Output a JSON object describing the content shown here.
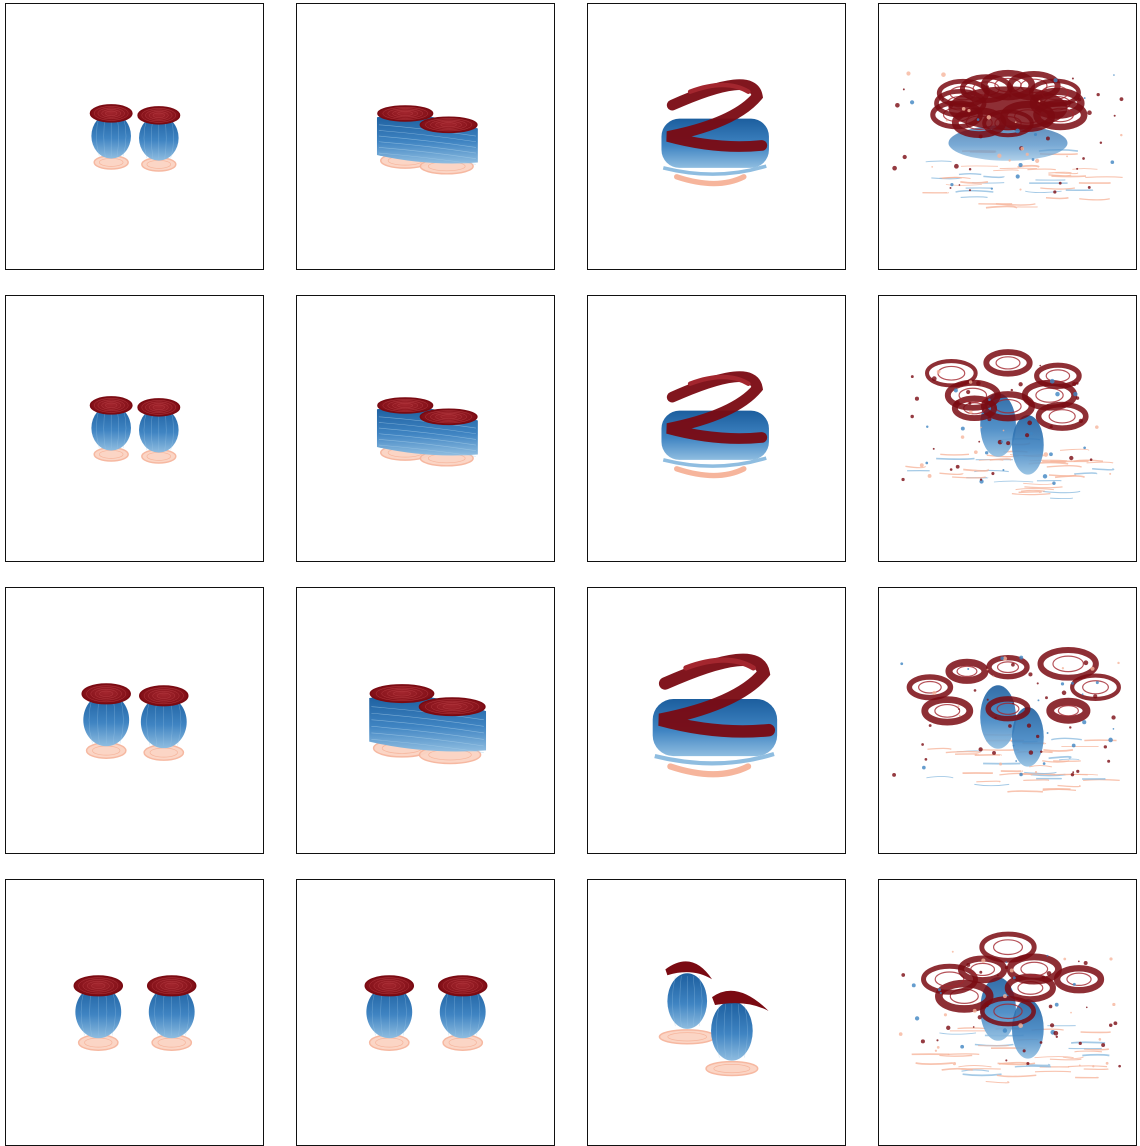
{
  "figure": {
    "rows": 4,
    "cols": 4,
    "colors": {
      "top_cap": "#7a0a12",
      "top_cap_light": "#a3262e",
      "body_dark": "#1c5e9e",
      "body_mid": "#3f84c2",
      "body_light": "#8fbde0",
      "bottom_cap": "#f6b59c",
      "bottom_cap_light": "#fbd3c2",
      "frame": "#111111"
    },
    "panels": [
      {
        "id": "r1c1",
        "stage": "separate"
      },
      {
        "id": "r1c2",
        "stage": "merging"
      },
      {
        "id": "r1c3",
        "stage": "twisted"
      },
      {
        "id": "r1c4",
        "stage": "turbulent-ring"
      },
      {
        "id": "r2c1",
        "stage": "separate"
      },
      {
        "id": "r2c2",
        "stage": "merging"
      },
      {
        "id": "r2c3",
        "stage": "twisted"
      },
      {
        "id": "r2c4",
        "stage": "turbulent-swirls"
      },
      {
        "id": "r3c1",
        "stage": "separate"
      },
      {
        "id": "r3c2",
        "stage": "merging"
      },
      {
        "id": "r3c3",
        "stage": "twisted"
      },
      {
        "id": "r3c4",
        "stage": "turbulent-swirls"
      },
      {
        "id": "r4c1",
        "stage": "separate"
      },
      {
        "id": "r4c2",
        "stage": "separate"
      },
      {
        "id": "r4c3",
        "stage": "offset"
      },
      {
        "id": "r4c4",
        "stage": "turbulent-swirls"
      }
    ]
  }
}
